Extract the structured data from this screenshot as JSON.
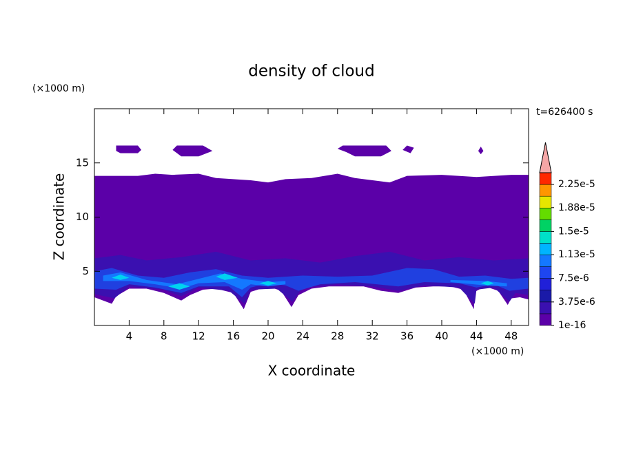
{
  "chart_data": {
    "type": "contour",
    "title": "density of cloud",
    "x_label": "X coordinate",
    "y_label": "Z coordinate",
    "x_unit": "(×1000 m)",
    "y_unit": "(×1000 m)",
    "time_label": "t=626400 s",
    "xlim": [
      0,
      50
    ],
    "ylim": [
      0,
      20
    ],
    "xticks": [
      4,
      8,
      12,
      16,
      20,
      24,
      28,
      32,
      36,
      40,
      44,
      48
    ],
    "yticks": [
      5,
      10,
      15
    ],
    "colorbar": {
      "clim": [
        1e-16,
        2.4375e-05
      ],
      "colors": [
        "#5b00a8",
        "#3a10b0",
        "#1a1aa8",
        "#2020d8",
        "#1e46f0",
        "#1478ff",
        "#00b4ff",
        "#00e0c8",
        "#00d264",
        "#64dc00",
        "#e6e600",
        "#ff9600",
        "#ff2800"
      ],
      "ticks": [
        1e-16,
        {
          "value": 3.75e-06,
          "label": "3.75e-6"
        },
        {
          "value": 7.5e-06,
          "label": "7.5e-6"
        },
        {
          "value": 1.13e-05,
          "label": "1.13e-5"
        },
        {
          "value": 1.5e-05,
          "label": "1.5e-5"
        },
        {
          "value": 1.88e-05,
          "label": "1.88e-5"
        },
        {
          "value": 2.25e-05,
          "label": "2.25e-5"
        }
      ]
    },
    "contours": [
      {
        "color": "#5b00a8",
        "points": [
          [
            0,
            13.8
          ],
          [
            5,
            13.8
          ],
          [
            7,
            14
          ],
          [
            9,
            13.9
          ],
          [
            12,
            14
          ],
          [
            14,
            13.6
          ],
          [
            18,
            13.4
          ],
          [
            20,
            13.2
          ],
          [
            22,
            13.5
          ],
          [
            25,
            13.6
          ],
          [
            28,
            14
          ],
          [
            30,
            13.6
          ],
          [
            34,
            13.2
          ],
          [
            36,
            13.8
          ],
          [
            40,
            13.9
          ],
          [
            44,
            13.7
          ],
          [
            48,
            13.9
          ],
          [
            50,
            13.9
          ],
          [
            50,
            2.4
          ],
          [
            49,
            2.6
          ],
          [
            48,
            2.5
          ],
          [
            47.6,
            1.9
          ],
          [
            46.5,
            3.2
          ],
          [
            45,
            3.6
          ],
          [
            43.8,
            3.1
          ],
          [
            43.7,
            1.5
          ],
          [
            42.5,
            3.3
          ],
          [
            41,
            3.6
          ],
          [
            39,
            3.6
          ],
          [
            37,
            3.5
          ],
          [
            35,
            3.0
          ],
          [
            33,
            3.2
          ],
          [
            31,
            3.6
          ],
          [
            29,
            3.6
          ],
          [
            27,
            3.6
          ],
          [
            25,
            3.4
          ],
          [
            23.5,
            2.8
          ],
          [
            22.7,
            1.7
          ],
          [
            21.5,
            3.2
          ],
          [
            20,
            3.6
          ],
          [
            18,
            3.1
          ],
          [
            17.2,
            1.5
          ],
          [
            16,
            3.0
          ],
          [
            14,
            3.4
          ],
          [
            12.5,
            3.3
          ],
          [
            11,
            2.8
          ],
          [
            10,
            2.3
          ],
          [
            8,
            3.0
          ],
          [
            6,
            3.4
          ],
          [
            4,
            3.4
          ],
          [
            2.5,
            2.7
          ],
          [
            2,
            2.0
          ],
          [
            1,
            2.3
          ],
          [
            0,
            2.6
          ]
        ]
      },
      {
        "color": "#5b00a8",
        "points": [
          [
            2.5,
            16.1
          ],
          [
            2.5,
            16.6
          ],
          [
            5,
            16.6
          ],
          [
            5.4,
            16.2
          ],
          [
            5,
            15.9
          ],
          [
            3,
            15.9
          ]
        ]
      },
      {
        "color": "#5b00a8",
        "points": [
          [
            9,
            16.2
          ],
          [
            9.5,
            16.6
          ],
          [
            12.5,
            16.6
          ],
          [
            13.6,
            16.1
          ],
          [
            12,
            15.6
          ],
          [
            10,
            15.6
          ]
        ]
      },
      {
        "color": "#5b00a8",
        "points": [
          [
            28,
            16.3
          ],
          [
            28.6,
            16.6
          ],
          [
            33.6,
            16.6
          ],
          [
            34.2,
            16.1
          ],
          [
            33,
            15.6
          ],
          [
            30,
            15.6
          ],
          [
            29,
            16.0
          ]
        ]
      },
      {
        "color": "#5b00a8",
        "points": [
          [
            35.5,
            16.2
          ],
          [
            36,
            16.6
          ],
          [
            36.8,
            16.4
          ],
          [
            36.4,
            15.9
          ]
        ]
      },
      {
        "color": "#5b00a8",
        "points": [
          [
            44.2,
            16.1
          ],
          [
            44.5,
            16.5
          ],
          [
            44.8,
            16.1
          ],
          [
            44.5,
            15.8
          ]
        ]
      },
      {
        "color": "#3a10b0",
        "points": [
          [
            0,
            6.2
          ],
          [
            3,
            6.5
          ],
          [
            6,
            6
          ],
          [
            10,
            6.3
          ],
          [
            14,
            6.8
          ],
          [
            18,
            6
          ],
          [
            22,
            6.2
          ],
          [
            26,
            5.8
          ],
          [
            30,
            6.4
          ],
          [
            34,
            6.8
          ],
          [
            38,
            6
          ],
          [
            42,
            6.3
          ],
          [
            46,
            6
          ],
          [
            50,
            6.2
          ],
          [
            50,
            2.8
          ],
          [
            48.5,
            3
          ],
          [
            47.8,
            2.2
          ],
          [
            46,
            3.5
          ],
          [
            44,
            3.3
          ],
          [
            43.8,
            2.0
          ],
          [
            42,
            3.5
          ],
          [
            38,
            3.7
          ],
          [
            35,
            3.2
          ],
          [
            32,
            3.6
          ],
          [
            28,
            3.8
          ],
          [
            24,
            3.5
          ],
          [
            22.8,
            2.2
          ],
          [
            21,
            3.4
          ],
          [
            18,
            3.3
          ],
          [
            17.3,
            2.0
          ],
          [
            15.5,
            3.2
          ],
          [
            12,
            3.5
          ],
          [
            10,
            2.7
          ],
          [
            8,
            3.3
          ],
          [
            4,
            3.6
          ],
          [
            2.3,
            2.5
          ],
          [
            0,
            2.9
          ]
        ]
      },
      {
        "color": "#2040e0",
        "points": [
          [
            0,
            5
          ],
          [
            2,
            5.3
          ],
          [
            5,
            4.6
          ],
          [
            8,
            4.4
          ],
          [
            11,
            4.9
          ],
          [
            14,
            5.2
          ],
          [
            17,
            4.6
          ],
          [
            20,
            4.4
          ],
          [
            24,
            4.6
          ],
          [
            28,
            4.5
          ],
          [
            32,
            4.6
          ],
          [
            36,
            5.3
          ],
          [
            39,
            5.2
          ],
          [
            42,
            4.5
          ],
          [
            45,
            4.6
          ],
          [
            48,
            4.3
          ],
          [
            50,
            4.4
          ],
          [
            50,
            3.4
          ],
          [
            47.8,
            3.2
          ],
          [
            46,
            3.8
          ],
          [
            44,
            3.5
          ],
          [
            42,
            3.9
          ],
          [
            38,
            4.0
          ],
          [
            35,
            3.6
          ],
          [
            30,
            4.0
          ],
          [
            26,
            3.8
          ],
          [
            23.5,
            3.2
          ],
          [
            22,
            3.7
          ],
          [
            20,
            3.9
          ],
          [
            18,
            3.5
          ],
          [
            17,
            2.6
          ],
          [
            15.5,
            3.6
          ],
          [
            12,
            3.6
          ],
          [
            10,
            3.0
          ],
          [
            7,
            3.5
          ],
          [
            4,
            3.8
          ],
          [
            2.5,
            3.3
          ],
          [
            0,
            3.4
          ]
        ]
      },
      {
        "color": "#1478ff",
        "points": [
          [
            1,
            4.6
          ],
          [
            3,
            4.9
          ],
          [
            6,
            4.2
          ],
          [
            9.5,
            3.8
          ],
          [
            12,
            4.3
          ],
          [
            14.5,
            4.8
          ],
          [
            17,
            4.3
          ],
          [
            20,
            4.0
          ],
          [
            22,
            4.1
          ],
          [
            22,
            3.8
          ],
          [
            20,
            3.6
          ],
          [
            18,
            3.8
          ],
          [
            17,
            3.3
          ],
          [
            15,
            4.0
          ],
          [
            12,
            3.9
          ],
          [
            10,
            3.4
          ],
          [
            7,
            3.8
          ],
          [
            4,
            4.1
          ],
          [
            1,
            4.1
          ]
        ]
      },
      {
        "color": "#1478ff",
        "points": [
          [
            41,
            4.2
          ],
          [
            45,
            4.1
          ],
          [
            47.5,
            3.9
          ],
          [
            47.5,
            3.6
          ],
          [
            45,
            3.7
          ],
          [
            41,
            4.0
          ]
        ]
      },
      {
        "color": "#00d2f0",
        "points": [
          [
            2,
            4.4
          ],
          [
            3,
            4.7
          ],
          [
            4,
            4.4
          ],
          [
            3,
            4.2
          ]
        ]
      },
      {
        "color": "#00d2f0",
        "points": [
          [
            8.5,
            3.6
          ],
          [
            9.8,
            3.9
          ],
          [
            11,
            3.6
          ],
          [
            9.8,
            3.3
          ]
        ]
      },
      {
        "color": "#00d2f0",
        "points": [
          [
            14,
            4.5
          ],
          [
            15,
            4.8
          ],
          [
            16.5,
            4.4
          ],
          [
            15,
            4.2
          ]
        ]
      },
      {
        "color": "#00d2f0",
        "points": [
          [
            19,
            3.9
          ],
          [
            20,
            4.1
          ],
          [
            21,
            3.9
          ],
          [
            20,
            3.7
          ]
        ]
      },
      {
        "color": "#00d2f0",
        "points": [
          [
            44.5,
            3.9
          ],
          [
            45.3,
            4.1
          ],
          [
            46,
            3.9
          ],
          [
            45.3,
            3.7
          ]
        ]
      }
    ]
  }
}
